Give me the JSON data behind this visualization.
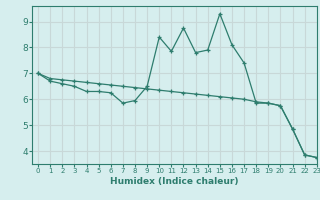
{
  "xlabel": "Humidex (Indice chaleur)",
  "background_color": "#d6eeee",
  "grid_color": "#c8d8d8",
  "line_color": "#2e7d6e",
  "xlim": [
    -0.5,
    23
  ],
  "ylim": [
    3.5,
    9.6
  ],
  "yticks": [
    4,
    5,
    6,
    7,
    8,
    9
  ],
  "xticks": [
    0,
    1,
    2,
    3,
    4,
    5,
    6,
    7,
    8,
    9,
    10,
    11,
    12,
    13,
    14,
    15,
    16,
    17,
    18,
    19,
    20,
    21,
    22,
    23
  ],
  "line1_x": [
    0,
    1,
    2,
    3,
    4,
    5,
    6,
    7,
    8,
    9,
    10,
    11,
    12,
    13,
    14,
    15,
    16,
    17,
    18,
    19,
    20,
    21,
    22,
    23
  ],
  "line1_y": [
    7.0,
    6.7,
    6.6,
    6.5,
    6.3,
    6.3,
    6.25,
    5.85,
    5.95,
    6.5,
    8.4,
    7.85,
    8.75,
    7.8,
    7.9,
    9.3,
    8.1,
    7.4,
    5.85,
    5.85,
    5.75,
    4.85,
    3.85,
    3.75
  ],
  "line2_x": [
    0,
    1,
    2,
    3,
    4,
    5,
    6,
    7,
    8,
    9,
    10,
    11,
    12,
    13,
    14,
    15,
    16,
    17,
    18,
    19,
    20,
    21,
    22,
    23
  ],
  "line2_y": [
    7.0,
    6.8,
    6.75,
    6.7,
    6.65,
    6.6,
    6.55,
    6.5,
    6.45,
    6.4,
    6.35,
    6.3,
    6.25,
    6.2,
    6.15,
    6.1,
    6.05,
    6.0,
    5.9,
    5.85,
    5.75,
    4.85,
    3.85,
    3.75
  ]
}
